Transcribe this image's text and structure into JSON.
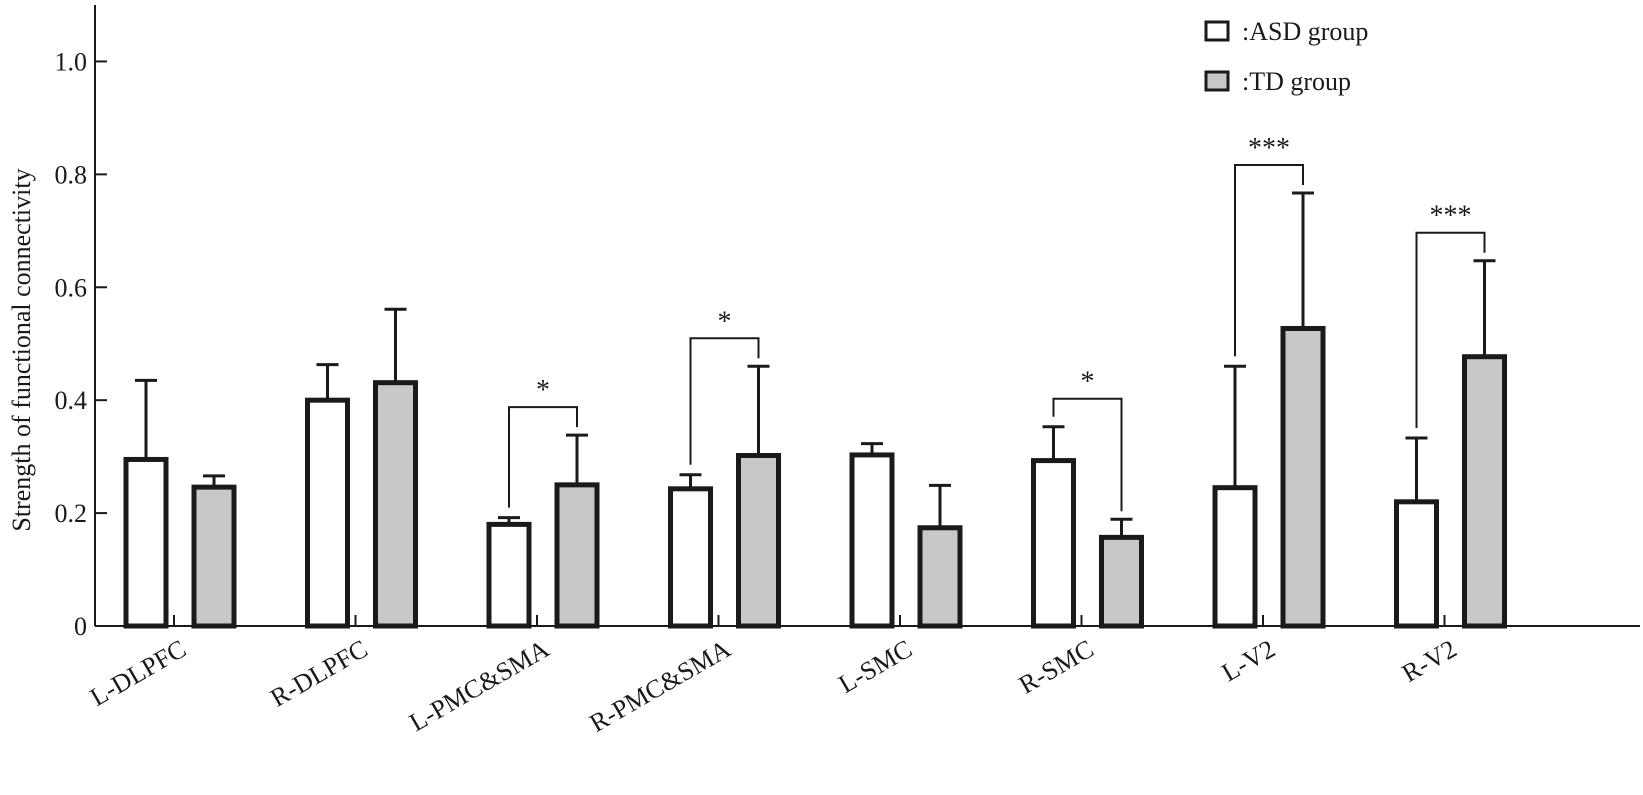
{
  "colors": {
    "axis": "#1a1a1a",
    "asd_fill": "#ffffff",
    "td_fill": "#c8c8c8",
    "bar_stroke": "#1a1a1a"
  },
  "chart_data": {
    "type": "bar",
    "title": "",
    "xlabel": "",
    "ylabel": "Strength of functional connectivity",
    "ylim": [
      0,
      1.1
    ],
    "yticks": [
      {
        "value": 0,
        "label": "0"
      },
      {
        "value": 0.2,
        "label": "0.2"
      },
      {
        "value": 0.4,
        "label": "0.4"
      },
      {
        "value": 0.6,
        "label": "0.6"
      },
      {
        "value": 0.8,
        "label": "0.8"
      },
      {
        "value": 1.0,
        "label": "1.0"
      }
    ],
    "categories": [
      "L-DLPFC",
      "R-DLPFC",
      "L-PMC&SMA",
      "R-PMC&SMA",
      "L-SMC",
      "R-SMC",
      "L-V2",
      "R-V2"
    ],
    "series": [
      {
        "name": ":ASD group",
        "fill": "asd",
        "values": [
          0.295,
          0.4,
          0.18,
          0.243,
          0.303,
          0.293,
          0.245,
          0.22
        ],
        "errors": [
          0.14,
          0.063,
          0.012,
          0.025,
          0.02,
          0.06,
          0.215,
          0.113
        ]
      },
      {
        "name": ":TD group",
        "fill": "td",
        "values": [
          0.246,
          0.431,
          0.25,
          0.302,
          0.174,
          0.157,
          0.527,
          0.477
        ],
        "errors": [
          0.02,
          0.13,
          0.088,
          0.158,
          0.075,
          0.032,
          0.24,
          0.17
        ]
      }
    ],
    "significance": [
      {
        "category": "L-PMC&SMA",
        "label": "*"
      },
      {
        "category": "R-PMC&SMA",
        "label": "*"
      },
      {
        "category": "R-SMC",
        "label": "*"
      },
      {
        "category": "L-V2",
        "label": "***"
      },
      {
        "category": "R-V2",
        "label": "***"
      }
    ],
    "legend": "top-right",
    "grid": false
  }
}
